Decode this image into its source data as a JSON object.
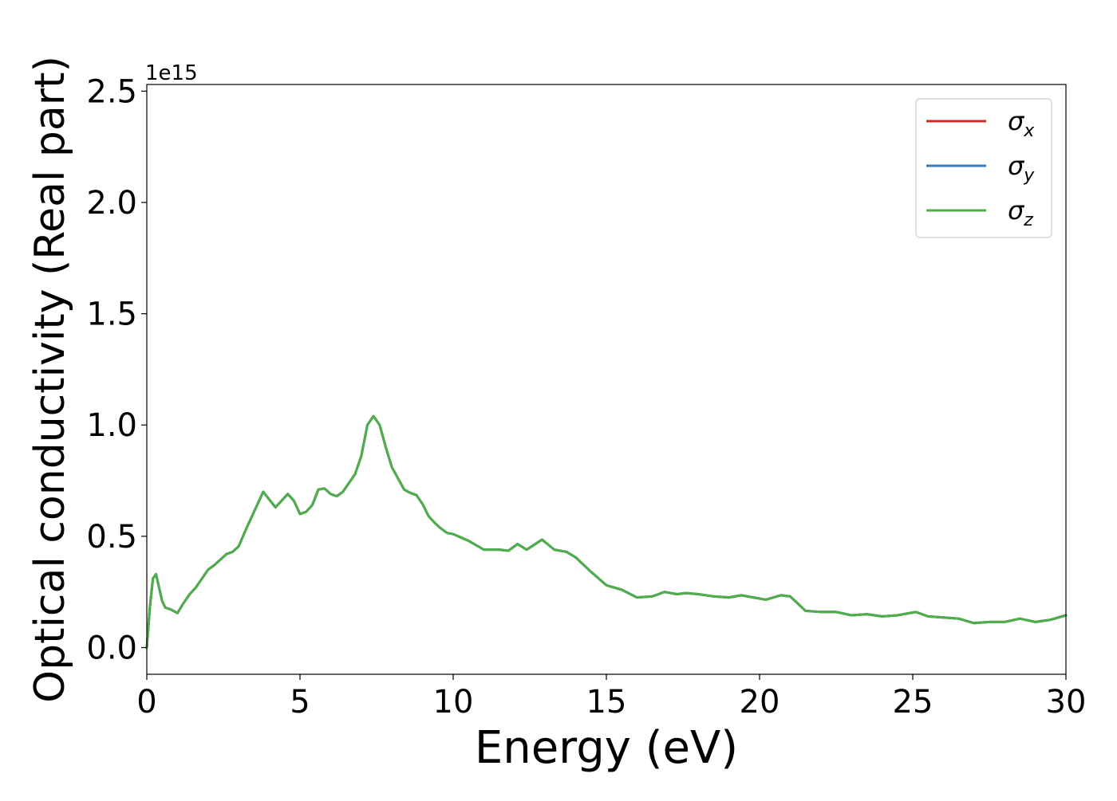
{
  "chart_data": {
    "type": "line",
    "xlabel": "Energy (eV)",
    "ylabel": "Optical conductivity (Real part)",
    "y_offset_label": "1e15",
    "xlim": [
      0,
      30
    ],
    "ylim": [
      -0.12,
      2.53
    ],
    "xticks": [
      0,
      5,
      10,
      15,
      20,
      25,
      30
    ],
    "xtick_labels": [
      "0",
      "5",
      "10",
      "15",
      "20",
      "25",
      "30"
    ],
    "yticks": [
      0.0,
      0.5,
      1.0,
      1.5,
      2.0,
      2.5
    ],
    "ytick_labels": [
      "0.0",
      "0.5",
      "1.0",
      "1.5",
      "2.0",
      "2.5"
    ],
    "grid": false,
    "legend_position": "top-right",
    "x": [
      0,
      0.1,
      0.2,
      0.3,
      0.4,
      0.5,
      0.6,
      0.8,
      1.0,
      1.2,
      1.4,
      1.6,
      1.8,
      2.0,
      2.2,
      2.4,
      2.6,
      2.8,
      3.0,
      3.2,
      3.4,
      3.6,
      3.8,
      4.0,
      4.2,
      4.4,
      4.6,
      4.8,
      5.0,
      5.2,
      5.4,
      5.6,
      5.8,
      6.0,
      6.2,
      6.4,
      6.6,
      6.8,
      7.0,
      7.2,
      7.4,
      7.6,
      7.8,
      8.0,
      8.2,
      8.4,
      8.6,
      8.8,
      9.0,
      9.2,
      9.4,
      9.6,
      9.8,
      10.0,
      10.5,
      11.0,
      11.5,
      11.8,
      12.1,
      12.4,
      12.9,
      13.3,
      13.7,
      14.0,
      14.5,
      15.0,
      15.5,
      16.0,
      16.5,
      16.9,
      17.3,
      17.6,
      18.0,
      18.5,
      19.0,
      19.4,
      19.8,
      20.2,
      20.7,
      21.0,
      21.5,
      22.0,
      22.5,
      23.0,
      23.5,
      24.0,
      24.5,
      25.1,
      25.5,
      26.0,
      26.5,
      27.0,
      27.5,
      28.0,
      28.5,
      29.0,
      29.5,
      30.0
    ],
    "series": [
      {
        "name": "σx",
        "label_main": "σ",
        "label_sub": "x",
        "color": "#d62728",
        "values": [
          0.0,
          0.18,
          0.31,
          0.33,
          0.27,
          0.21,
          0.18,
          0.17,
          0.155,
          0.2,
          0.24,
          0.27,
          0.31,
          0.35,
          0.37,
          0.395,
          0.42,
          0.43,
          0.455,
          0.52,
          0.58,
          0.64,
          0.7,
          0.665,
          0.63,
          0.66,
          0.69,
          0.66,
          0.6,
          0.61,
          0.64,
          0.71,
          0.715,
          0.69,
          0.68,
          0.7,
          0.74,
          0.78,
          0.86,
          1.0,
          1.04,
          1.0,
          0.9,
          0.81,
          0.76,
          0.71,
          0.695,
          0.685,
          0.645,
          0.59,
          0.56,
          0.535,
          0.515,
          0.51,
          0.48,
          0.44,
          0.44,
          0.435,
          0.465,
          0.44,
          0.485,
          0.44,
          0.43,
          0.405,
          0.34,
          0.28,
          0.26,
          0.225,
          0.23,
          0.25,
          0.24,
          0.245,
          0.24,
          0.23,
          0.225,
          0.235,
          0.225,
          0.215,
          0.235,
          0.23,
          0.165,
          0.16,
          0.16,
          0.145,
          0.15,
          0.14,
          0.145,
          0.16,
          0.14,
          0.135,
          0.13,
          0.11,
          0.115,
          0.115,
          0.13,
          0.115,
          0.125,
          0.145
        ]
      },
      {
        "name": "σy",
        "label_main": "σ",
        "label_sub": "y",
        "color": "#3b7bbf",
        "values": [
          0.0,
          0.18,
          0.31,
          0.33,
          0.27,
          0.21,
          0.18,
          0.17,
          0.155,
          0.2,
          0.24,
          0.27,
          0.31,
          0.35,
          0.37,
          0.395,
          0.42,
          0.43,
          0.455,
          0.52,
          0.58,
          0.64,
          0.7,
          0.665,
          0.63,
          0.66,
          0.69,
          0.66,
          0.6,
          0.61,
          0.64,
          0.71,
          0.715,
          0.69,
          0.68,
          0.7,
          0.74,
          0.78,
          0.86,
          1.0,
          1.04,
          1.0,
          0.9,
          0.81,
          0.76,
          0.71,
          0.695,
          0.685,
          0.645,
          0.59,
          0.56,
          0.535,
          0.515,
          0.51,
          0.48,
          0.44,
          0.44,
          0.435,
          0.465,
          0.44,
          0.485,
          0.44,
          0.43,
          0.405,
          0.34,
          0.28,
          0.26,
          0.225,
          0.23,
          0.25,
          0.24,
          0.245,
          0.24,
          0.23,
          0.225,
          0.235,
          0.225,
          0.215,
          0.235,
          0.23,
          0.165,
          0.16,
          0.16,
          0.145,
          0.15,
          0.14,
          0.145,
          0.16,
          0.14,
          0.135,
          0.13,
          0.11,
          0.115,
          0.115,
          0.13,
          0.115,
          0.125,
          0.145
        ]
      },
      {
        "name": "σz",
        "label_main": "σ",
        "label_sub": "z",
        "color": "#4daf4a",
        "values": [
          0.0,
          0.18,
          0.31,
          0.33,
          0.27,
          0.21,
          0.18,
          0.17,
          0.155,
          0.2,
          0.24,
          0.27,
          0.31,
          0.35,
          0.37,
          0.395,
          0.42,
          0.43,
          0.455,
          0.52,
          0.58,
          0.64,
          0.7,
          0.665,
          0.63,
          0.66,
          0.69,
          0.66,
          0.6,
          0.61,
          0.64,
          0.71,
          0.715,
          0.69,
          0.68,
          0.7,
          0.74,
          0.78,
          0.86,
          1.0,
          1.04,
          1.0,
          0.9,
          0.81,
          0.76,
          0.71,
          0.695,
          0.685,
          0.645,
          0.59,
          0.56,
          0.535,
          0.515,
          0.51,
          0.48,
          0.44,
          0.44,
          0.435,
          0.465,
          0.44,
          0.485,
          0.44,
          0.43,
          0.405,
          0.34,
          0.28,
          0.26,
          0.225,
          0.23,
          0.25,
          0.24,
          0.245,
          0.24,
          0.23,
          0.225,
          0.235,
          0.225,
          0.215,
          0.235,
          0.23,
          0.165,
          0.16,
          0.16,
          0.145,
          0.15,
          0.14,
          0.145,
          0.16,
          0.14,
          0.135,
          0.13,
          0.11,
          0.115,
          0.115,
          0.13,
          0.115,
          0.125,
          0.145
        ]
      }
    ]
  }
}
